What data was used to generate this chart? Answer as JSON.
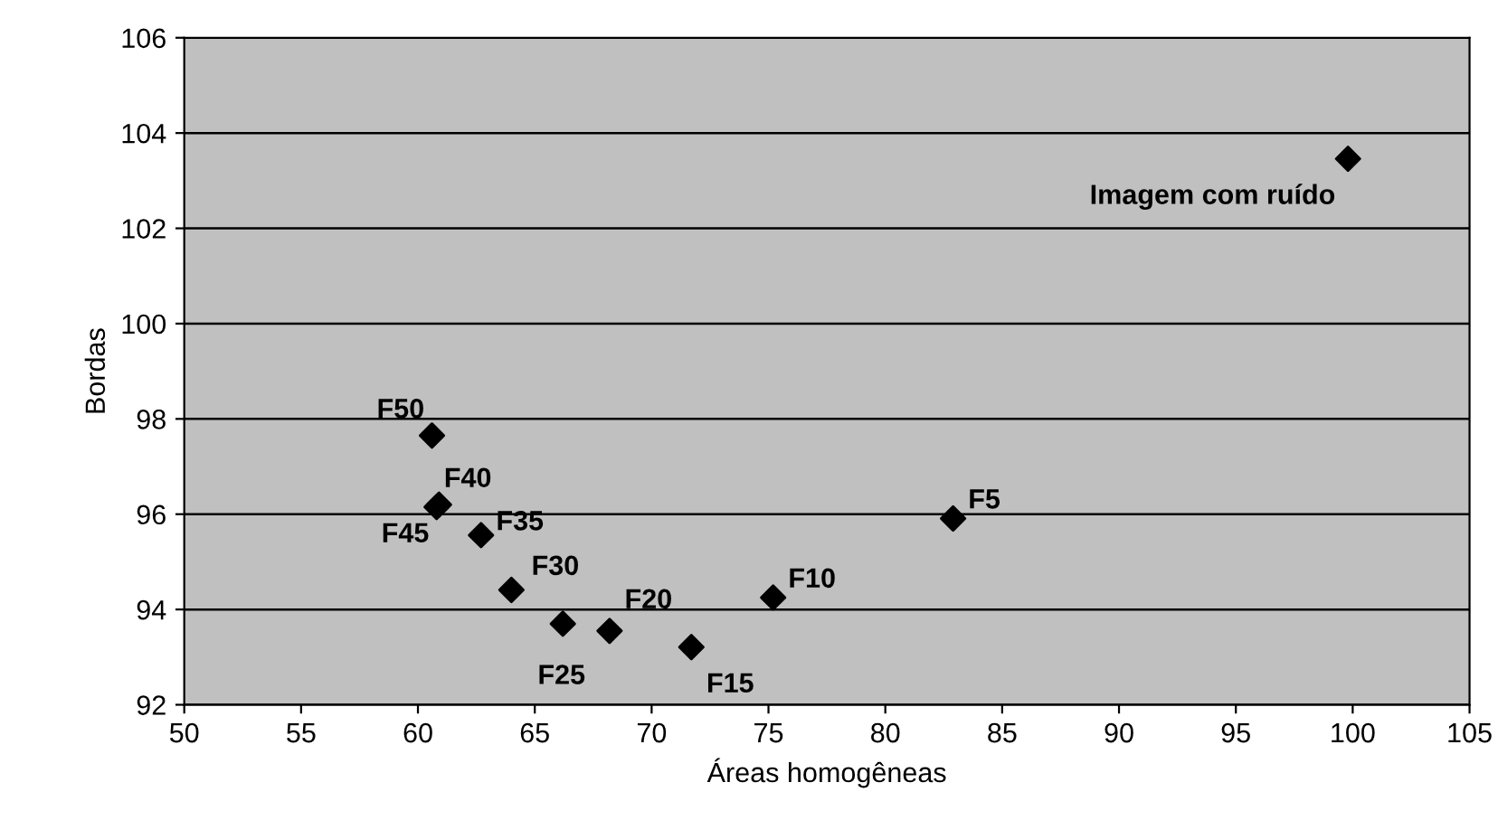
{
  "chart_data": {
    "type": "scatter",
    "xlabel": "Áreas homogêneas",
    "ylabel": "Bordas",
    "series": [
      {
        "color": "#000000",
        "x": [
          99.8,
          60.6,
          60.9,
          60.8,
          62.7,
          64.0,
          66.2,
          68.2,
          71.7,
          75.2,
          82.9
        ],
        "values": [
          103.46,
          97.65,
          96.2,
          96.15,
          95.56,
          94.41,
          93.7,
          93.55,
          93.21,
          94.25,
          95.91
        ]
      }
    ],
    "marker": "diamond",
    "xlim": [
      50,
      105
    ],
    "xticks": [
      50,
      55,
      60,
      65,
      70,
      75,
      80,
      85,
      90,
      95,
      100,
      105
    ],
    "ylim": [
      92,
      106
    ],
    "yticks": [
      92,
      94,
      96,
      98,
      100,
      102,
      104,
      106
    ],
    "grid": "y",
    "legend": false,
    "annotations": [
      {
        "text": "Imagem com ruído",
        "x": 99.8,
        "y": 103.46
      },
      {
        "text": "F50",
        "x": 60.6,
        "y": 97.65
      },
      {
        "text": "F40",
        "x": 60.9,
        "y": 96.2
      },
      {
        "text": "F45",
        "x": 60.8,
        "y": 96.15
      },
      {
        "text": "F35",
        "x": 62.7,
        "y": 95.56
      },
      {
        "text": "F30",
        "x": 64.0,
        "y": 94.41
      },
      {
        "text": "F25",
        "x": 66.2,
        "y": 93.7
      },
      {
        "text": "F20",
        "x": 68.2,
        "y": 93.55
      },
      {
        "text": "F15",
        "x": 71.7,
        "y": 93.21
      },
      {
        "text": "F10",
        "x": 75.2,
        "y": 94.25
      },
      {
        "text": "F5",
        "x": 82.9,
        "y": 95.91
      }
    ]
  }
}
